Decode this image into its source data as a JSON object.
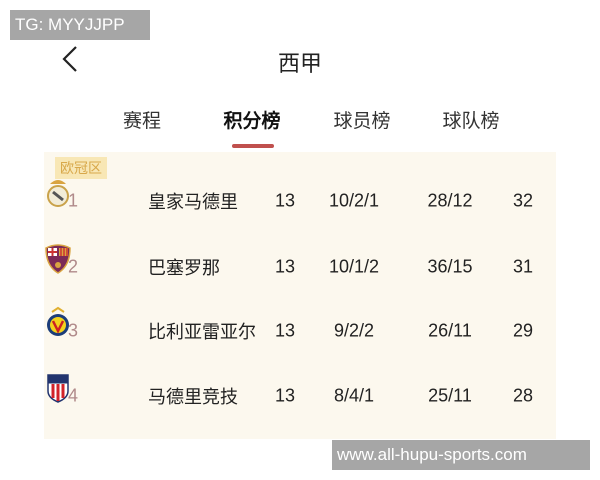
{
  "watermark_top": "TG: MYYJJPP",
  "watermark_bottom": "www.all-hupu-sports.com",
  "header": {
    "title": "西甲",
    "back_icon": "chevron-left-icon"
  },
  "tabs": [
    {
      "label": "赛程",
      "active": false
    },
    {
      "label": "积分榜",
      "active": true
    },
    {
      "label": "球员榜",
      "active": false
    },
    {
      "label": "球队榜",
      "active": false
    }
  ],
  "accent_color": "#c0504d",
  "zone_label": "欧冠区",
  "rows": [
    {
      "rank": "1",
      "team": "皇家马德里",
      "crest": "real-madrid-crest-icon",
      "played": "13",
      "wdl": "10/2/1",
      "goals": "28/12",
      "points": "32"
    },
    {
      "rank": "2",
      "team": "巴塞罗那",
      "crest": "barcelona-crest-icon",
      "played": "13",
      "wdl": "10/1/2",
      "goals": "36/15",
      "points": "31"
    },
    {
      "rank": "3",
      "team": "比利亚雷亚尔",
      "crest": "villarreal-crest-icon",
      "played": "13",
      "wdl": "9/2/2",
      "goals": "26/11",
      "points": "29"
    },
    {
      "rank": "4",
      "team": "马德里竞技",
      "crest": "atletico-madrid-crest-icon",
      "played": "13",
      "wdl": "8/4/1",
      "goals": "25/11",
      "points": "28"
    }
  ]
}
